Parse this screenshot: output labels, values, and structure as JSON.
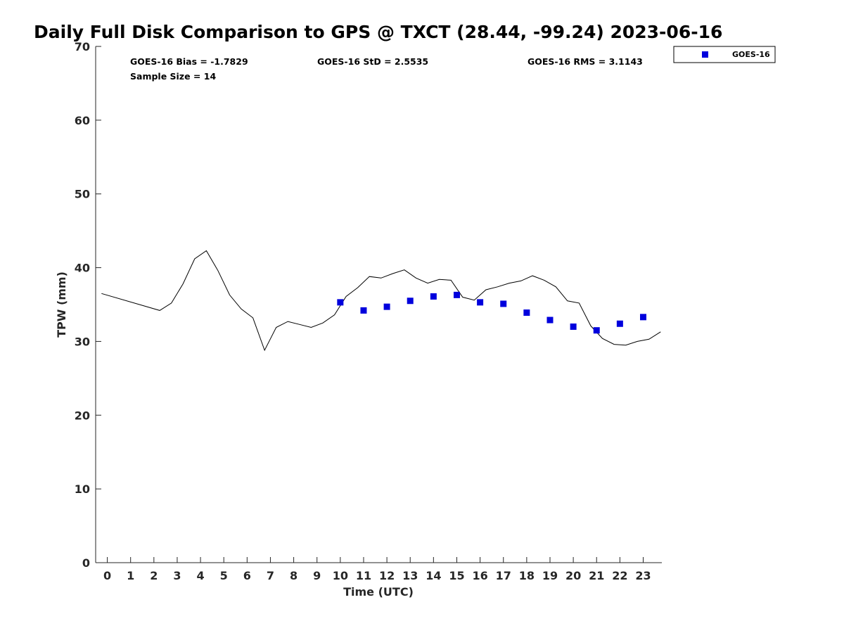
{
  "chart_data": {
    "type": "scatter",
    "title": "Daily Full Disk Comparison to GPS @ TXCT (28.44, -99.24) 2023-06-16",
    "xlabel": "Time (UTC)",
    "ylabel": "TPW (mm)",
    "xlim": [
      -0.5,
      23.8
    ],
    "ylim": [
      0,
      70
    ],
    "x_ticks": [
      0,
      1,
      2,
      3,
      4,
      5,
      6,
      7,
      8,
      9,
      10,
      11,
      12,
      13,
      14,
      15,
      16,
      17,
      18,
      19,
      20,
      21,
      22,
      23
    ],
    "x_tick_labels": [
      "0",
      "1",
      "2",
      "3",
      "4",
      "5",
      "6",
      "7",
      "8",
      "9",
      "10",
      "11",
      "12",
      "13",
      "14",
      "15",
      "16",
      "17",
      "18",
      "19",
      "20",
      "21",
      "22",
      "23"
    ],
    "y_ticks": [
      0,
      10,
      20,
      30,
      40,
      50,
      60,
      70
    ],
    "y_tick_labels": [
      "0",
      "10",
      "20",
      "30",
      "40",
      "50",
      "60",
      "70"
    ],
    "grid": false,
    "legend_position": "top-right (outside plot)",
    "stats": {
      "bias": "GOES-16 Bias = -1.7829",
      "std": "GOES-16 StD = 2.5535",
      "rms": "GOES-16 RMS = 3.1143",
      "sample_size": "Sample Size = 14"
    },
    "series": [
      {
        "kind": "line",
        "color": "#000000",
        "x": [
          -0.25,
          2.25,
          2.75,
          3.25,
          3.75,
          4.25,
          4.75,
          5.25,
          5.75,
          6.25,
          6.75,
          7.25,
          7.75,
          8.25,
          8.75,
          9.25,
          9.75,
          10.25,
          10.75,
          11.25,
          11.75,
          12.25,
          12.75,
          13.25,
          13.75,
          14.25,
          14.75,
          15.25,
          15.75,
          16.25,
          16.75,
          17.25,
          17.75,
          18.25,
          18.75,
          19.25,
          19.75,
          20.25,
          20.75,
          21.25,
          21.75,
          22.25,
          22.75,
          23.25,
          23.75
        ],
        "values": [
          36.5,
          34.2,
          35.2,
          37.8,
          41.2,
          42.3,
          39.6,
          36.3,
          34.4,
          33.2,
          28.8,
          31.9,
          32.7,
          32.3,
          31.9,
          32.5,
          33.6,
          36.1,
          37.3,
          38.8,
          38.6,
          39.2,
          39.7,
          38.6,
          37.9,
          38.4,
          38.3,
          36.0,
          35.6,
          37.0,
          37.4,
          37.9,
          38.2,
          38.9,
          38.3,
          37.4,
          35.5,
          35.2,
          32.1,
          30.4,
          29.6,
          29.5,
          30.0,
          30.3,
          31.3
        ]
      },
      {
        "kind": "scatter",
        "name": "GOES-16",
        "color": "#0000dd",
        "x": [
          10,
          11,
          12,
          13,
          14,
          15,
          16,
          17,
          18,
          19,
          20,
          21,
          22,
          23
        ],
        "values": [
          35.3,
          34.2,
          34.7,
          35.5,
          36.1,
          36.3,
          35.3,
          35.1,
          33.9,
          32.9,
          32.0,
          31.5,
          32.4,
          33.3
        ]
      }
    ]
  }
}
